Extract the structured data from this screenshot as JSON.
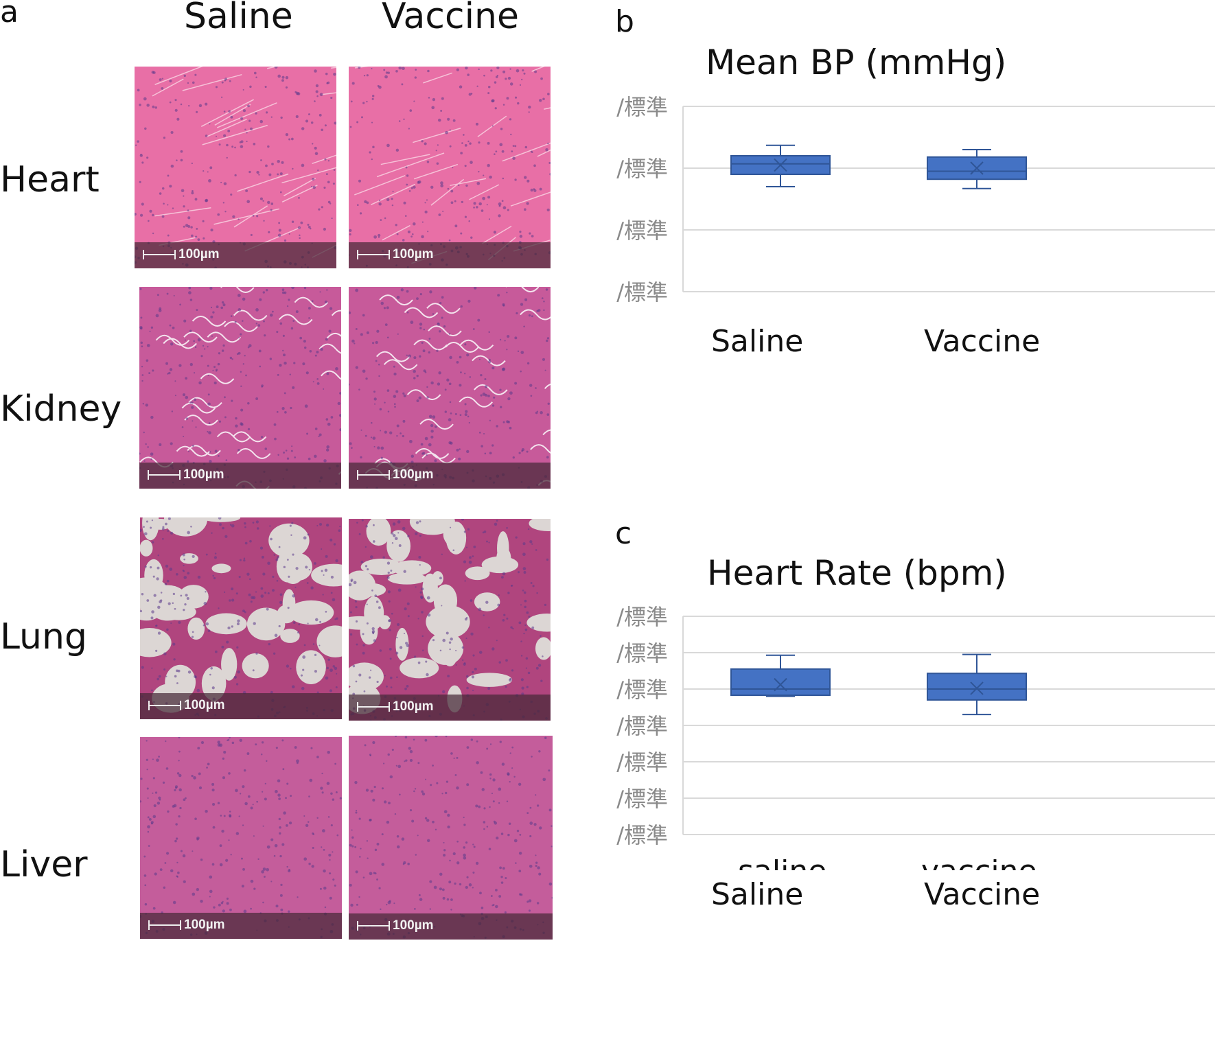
{
  "panel_a": {
    "letter": "a",
    "columns": [
      "Saline",
      "Vaccine"
    ],
    "rows": [
      "Heart",
      "Kidney",
      "Lung",
      "Liver"
    ],
    "scale_label": "100µm",
    "tissue_colors": {
      "Heart": "#e86fa6",
      "Kidney": "#c75a9a",
      "Lung": "#b0457e",
      "Liver": "#c45d9b"
    }
  },
  "panel_b": {
    "letter": "b"
  },
  "panel_c": {
    "letter": "c",
    "hidden_labels": [
      "saline",
      "vaccine"
    ]
  },
  "chart_data": [
    {
      "type": "box",
      "title": "Mean BP (mmHg)",
      "categories": [
        "Saline",
        "Vaccine"
      ],
      "ytick_labels": [
        "/標準",
        "/標準",
        "/標準",
        "/標準"
      ],
      "ylim": [
        0,
        3
      ],
      "grid": true,
      "color": "#4472c4",
      "boxes": [
        {
          "category": "Saline",
          "min": 1.7,
          "q1": 1.9,
          "median": 2.07,
          "mean": 2.05,
          "q3": 2.2,
          "max": 2.37
        },
        {
          "category": "Vaccine",
          "min": 1.67,
          "q1": 1.82,
          "median": 1.95,
          "mean": 2.0,
          "q3": 2.18,
          "max": 2.3
        }
      ]
    },
    {
      "type": "box",
      "title": "Heart Rate (bpm)",
      "categories": [
        "Saline",
        "Vaccine"
      ],
      "ytick_labels": [
        "/標準",
        "/標準",
        "/標準",
        "/標準",
        "/標準",
        "/標準",
        "/標準"
      ],
      "ylim": [
        0,
        6
      ],
      "grid": true,
      "color": "#4472c4",
      "boxes": [
        {
          "category": "Saline",
          "min": 3.8,
          "q1": 3.83,
          "median": 4.0,
          "mean": 4.12,
          "q3": 4.55,
          "max": 4.93
        },
        {
          "category": "Vaccine",
          "min": 3.3,
          "q1": 3.7,
          "median": 4.0,
          "mean": 4.02,
          "q3": 4.43,
          "max": 4.95
        }
      ]
    }
  ]
}
